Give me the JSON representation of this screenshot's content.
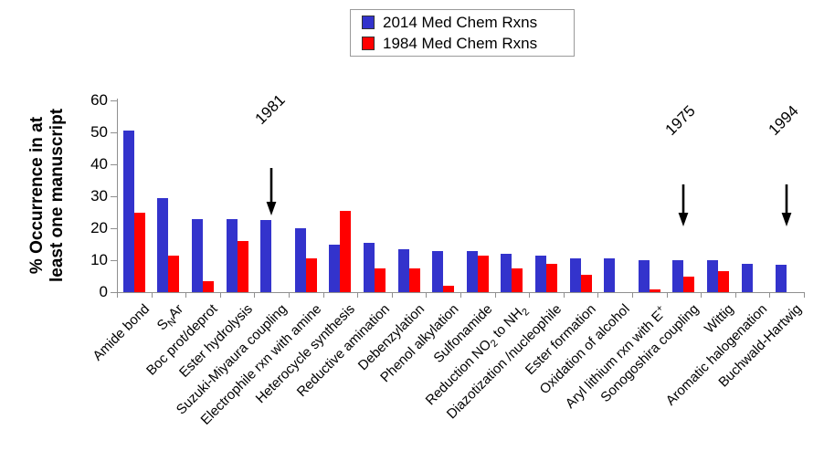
{
  "chart_data": {
    "type": "bar",
    "title": "",
    "ylabel": "% Occurrence in at least one manuscript",
    "ylabel_lines": [
      "% Occurrence in at",
      "least one manuscript"
    ],
    "ylim": [
      0,
      60
    ],
    "yticks": [
      0,
      10,
      20,
      30,
      40,
      50,
      60
    ],
    "grid": false,
    "legend_position": "top-center",
    "categories": [
      "Amide bond",
      "S~N~Ar",
      "Boc prot/deprot",
      "Ester hydrolysis",
      "Suzuki-Miyaura coupling",
      "Electrophile rxn with amine",
      "Heterocycle synthesis",
      "Reductive amination",
      "Debenzylation",
      "Phenol alkylation",
      "Sulfonamide",
      "Reduction NO~2~ to NH~2~",
      "Diazotization /nucleophile",
      "Ester formation",
      "Oxidation of alcohol",
      "Aryl lithium rxn with E^+^",
      "Sonogoshira coupling",
      "Wittig",
      "Aromatic halogenation",
      "Buchwald-Hartwig"
    ],
    "series": [
      {
        "name": "2014 Med Chem Rxns",
        "color": "#3333CC",
        "values": [
          50.5,
          29.5,
          23,
          23,
          22.5,
          20,
          15,
          15.5,
          13.5,
          13,
          13,
          12,
          11.5,
          10.5,
          10.5,
          10,
          10,
          10,
          9,
          8.5
        ]
      },
      {
        "name": "1984 Med Chem Rxns",
        "color": "#FF0000",
        "values": [
          25,
          11.5,
          3.5,
          16,
          0,
          10.5,
          25.5,
          7.5,
          7.5,
          2,
          11.5,
          7.5,
          9,
          5.5,
          0,
          1,
          5,
          6.5,
          0,
          0
        ]
      }
    ],
    "annotations": [
      {
        "text": "1981",
        "category_index": 4
      },
      {
        "text": "1975",
        "category_index": 16
      },
      {
        "text": "1994",
        "category_index": 19
      }
    ]
  },
  "legend": {
    "items": [
      {
        "label": "2014 Med Chem Rxns",
        "color": "#3333CC"
      },
      {
        "label": "1984 Med Chem Rxns",
        "color": "#FF0000"
      }
    ]
  }
}
